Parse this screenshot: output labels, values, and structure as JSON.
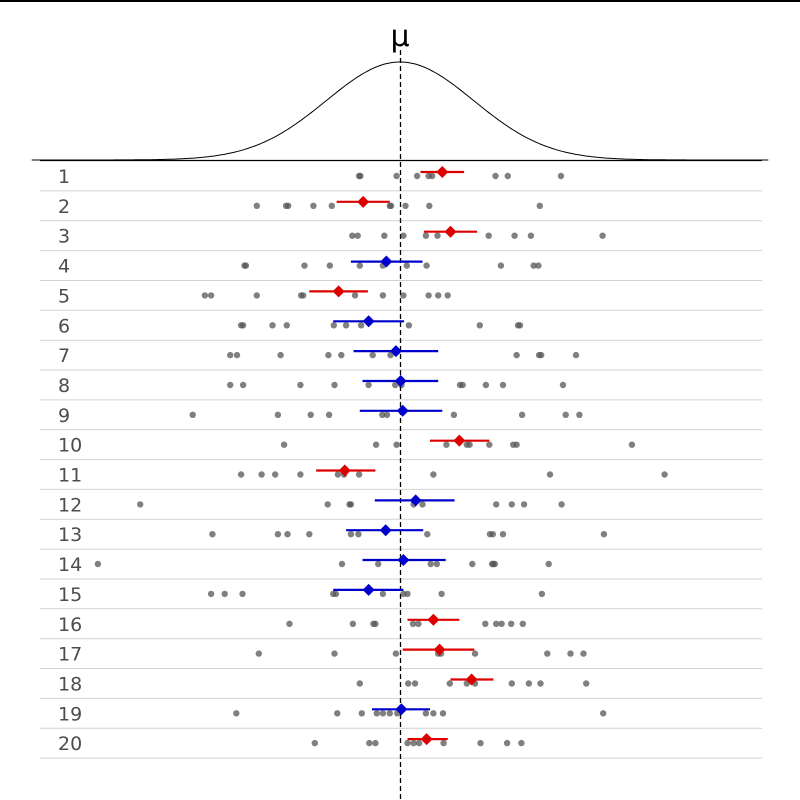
{
  "chart_data": {
    "type": "scatter",
    "title": "",
    "mu_label": "μ",
    "mu": 0,
    "x_range": [
      -5.4,
      5.4
    ],
    "grid": "horizontal row separators",
    "colors": {
      "curve": "#000000",
      "samples": "#555555",
      "covers_mu": "#0000cc",
      "misses_mu": "#dd0000"
    },
    "rows": [
      {
        "label": "1",
        "mean": 0.62,
        "ci": [
          0.3,
          0.94
        ],
        "covers_mu": false,
        "samples": [
          -0.6,
          -0.58,
          -0.05,
          0.25,
          0.42,
          0.47,
          1.4,
          1.58,
          2.36
        ]
      },
      {
        "label": "2",
        "mean": -0.54,
        "ci": [
          -0.93,
          -0.15
        ],
        "covers_mu": false,
        "samples": [
          -2.1,
          -1.67,
          -1.64,
          -1.27,
          -1.0,
          -0.15,
          -0.13,
          0.08,
          0.43,
          2.05
        ]
      },
      {
        "label": "3",
        "mean": 0.74,
        "ci": [
          0.35,
          1.13
        ],
        "covers_mu": false,
        "samples": [
          -0.7,
          -0.62,
          -0.23,
          0.05,
          0.38,
          0.55,
          1.3,
          1.68,
          1.92,
          2.97
        ]
      },
      {
        "label": "4",
        "mean": -0.2,
        "ci": [
          -0.72,
          0.33
        ],
        "covers_mu": true,
        "samples": [
          -2.28,
          -2.26,
          -1.4,
          -1.03,
          -0.59,
          -0.25,
          0.1,
          0.39,
          1.48,
          1.96,
          2.03
        ]
      },
      {
        "label": "5",
        "mean": -0.9,
        "ci": [
          -1.33,
          -0.47
        ],
        "covers_mu": false,
        "samples": [
          -2.86,
          -2.77,
          -2.1,
          -1.45,
          -1.42,
          -0.66,
          -0.25,
          0.05,
          0.42,
          0.56,
          0.7
        ]
      },
      {
        "label": "6",
        "mean": -0.46,
        "ci": [
          -0.98,
          0.06
        ],
        "covers_mu": true,
        "samples": [
          -2.33,
          -2.3,
          -1.87,
          -1.66,
          -0.97,
          -0.79,
          -0.57,
          0.13,
          1.17,
          1.73,
          1.76
        ]
      },
      {
        "label": "7",
        "mean": -0.06,
        "ci": [
          -0.68,
          0.56
        ],
        "covers_mu": true,
        "samples": [
          -2.49,
          -2.39,
          -1.75,
          -1.05,
          -0.86,
          -0.4,
          -0.14,
          1.71,
          2.04,
          2.07,
          2.58
        ]
      },
      {
        "label": "8",
        "mean": 0.01,
        "ci": [
          -0.55,
          0.56
        ],
        "covers_mu": true,
        "samples": [
          -2.49,
          -2.3,
          -1.46,
          -0.96,
          -0.46,
          -0.07,
          0.02,
          0.88,
          0.92,
          1.26,
          1.51,
          2.39
        ]
      },
      {
        "label": "9",
        "mean": 0.04,
        "ci": [
          -0.59,
          0.62
        ],
        "covers_mu": true,
        "samples": [
          -3.04,
          -1.79,
          -1.31,
          -1.04,
          -0.26,
          -0.19,
          0.79,
          1.79,
          2.43,
          2.63
        ]
      },
      {
        "label": "10",
        "mean": 0.87,
        "ci": [
          0.44,
          1.31
        ],
        "covers_mu": false,
        "samples": [
          -1.7,
          -0.35,
          -0.05,
          0.68,
          0.98,
          1.02,
          1.31,
          1.66,
          1.71,
          3.4
        ]
      },
      {
        "label": "11",
        "mean": -0.81,
        "ci": [
          -1.23,
          -0.36
        ],
        "covers_mu": false,
        "samples": [
          -2.33,
          -2.03,
          -1.83,
          -1.46,
          -0.91,
          -0.82,
          -0.6,
          0.49,
          2.2,
          3.88
        ]
      },
      {
        "label": "12",
        "mean": 0.23,
        "ci": [
          -0.37,
          0.8
        ],
        "covers_mu": true,
        "samples": [
          -3.81,
          -1.06,
          -0.74,
          -0.72,
          0.2,
          0.33,
          1.41,
          1.64,
          1.82,
          2.37
        ]
      },
      {
        "label": "13",
        "mean": -0.21,
        "ci": [
          -0.79,
          0.34
        ],
        "covers_mu": true,
        "samples": [
          -2.75,
          -1.79,
          -1.65,
          -1.33,
          -0.72,
          -0.61,
          0.4,
          1.32,
          1.36,
          1.51,
          2.99
        ]
      },
      {
        "label": "14",
        "mean": 0.05,
        "ci": [
          -0.55,
          0.67
        ],
        "covers_mu": true,
        "samples": [
          -4.43,
          -0.85,
          -0.32,
          0.45,
          0.54,
          1.06,
          1.37,
          1.39,
          1.35,
          2.18
        ]
      },
      {
        "label": "15",
        "mean": -0.46,
        "ci": [
          -0.98,
          0.05
        ],
        "covers_mu": true,
        "samples": [
          -2.77,
          -2.57,
          -2.31,
          -0.98,
          -0.94,
          -0.25,
          0.05,
          0.11,
          0.61,
          2.08
        ]
      },
      {
        "label": "16",
        "mean": 0.49,
        "ci": [
          0.11,
          0.87
        ],
        "covers_mu": false,
        "samples": [
          -1.62,
          -0.69,
          -0.39,
          -0.36,
          0.19,
          0.27,
          1.25,
          1.41,
          1.49,
          1.63,
          1.8
        ]
      },
      {
        "label": "17",
        "mean": 0.58,
        "ci": [
          0.04,
          1.09
        ],
        "covers_mu": false,
        "samples": [
          -2.07,
          -0.96,
          -0.06,
          0.56,
          0.6,
          1.1,
          2.16,
          2.5,
          2.69
        ]
      },
      {
        "label": "18",
        "mean": 1.05,
        "ci": [
          0.74,
          1.37
        ],
        "covers_mu": false,
        "samples": [
          -0.59,
          0.12,
          0.22,
          0.73,
          0.98,
          1.1,
          1.64,
          1.89,
          2.06,
          2.73
        ]
      },
      {
        "label": "19",
        "mean": 0.02,
        "ci": [
          -0.41,
          0.44
        ],
        "covers_mu": true,
        "samples": [
          -2.4,
          -0.92,
          -0.56,
          -0.34,
          -0.25,
          -0.15,
          -0.04,
          0.38,
          0.49,
          0.63,
          2.98
        ]
      },
      {
        "label": "20",
        "mean": 0.39,
        "ci": [
          0.11,
          0.7
        ],
        "covers_mu": false,
        "samples": [
          -1.25,
          -0.45,
          -0.36,
          0.11,
          0.2,
          0.28,
          0.64,
          1.18,
          1.57,
          1.78
        ]
      }
    ]
  }
}
